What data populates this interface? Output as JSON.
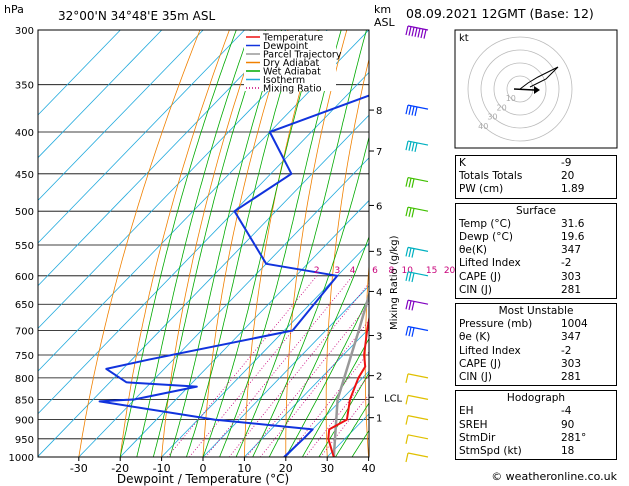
{
  "header": {
    "title": "32°00'N  34°48'E  35m  ASL",
    "hpa_label": "hPa",
    "km_label": "km",
    "asl_label": "ASL",
    "datetime": "08.09.2021  12GMT  (Base: 12)"
  },
  "legend": [
    "Temperature",
    "Dewpoint",
    "Parcel Trajectory",
    "Dry Adiabat",
    "Wet Adiabat",
    "Isotherm",
    "Mixing Ratio"
  ],
  "colors": {
    "temperature": "#ee1111",
    "dewpoint": "#1133dd",
    "parcel": "#999999",
    "dry_adiabat": "#f08000",
    "wet_adiabat": "#00aa00",
    "isotherm": "#22aadd",
    "mixing_ratio": "#c8007a",
    "barb_purple": "#8000c0",
    "barb_blue": "#0040ff",
    "barb_cyan": "#00b0c0",
    "barb_green": "#40c000",
    "barb_yellow": "#e0c000"
  },
  "chart_data": {
    "type": "line",
    "xlabel": "Dewpoint / Temperature (°C)",
    "x_ticks": [
      -30,
      -20,
      -10,
      0,
      10,
      20,
      30,
      40
    ],
    "pressure_levels": [
      300,
      350,
      400,
      450,
      500,
      550,
      600,
      650,
      700,
      750,
      800,
      850,
      900,
      950,
      1000
    ],
    "altitude_km": [
      {
        "label": "8",
        "p": 376
      },
      {
        "label": "7",
        "p": 422
      },
      {
        "label": "6",
        "p": 492
      },
      {
        "label": "5",
        "p": 560
      },
      {
        "label": "4",
        "p": 627
      },
      {
        "label": "3",
        "p": 710
      },
      {
        "label": "2",
        "p": 795
      },
      {
        "label": "1",
        "p": 895
      },
      {
        "label": "LCL",
        "p": 845
      }
    ],
    "mixing_ratio_labels": [
      "2",
      "3",
      "4",
      "6",
      "8",
      "10",
      "15",
      "20",
      "25"
    ],
    "mixing_ratio_values": [
      2,
      3,
      4,
      6,
      8,
      10,
      15,
      20,
      25
    ],
    "mixing_ratio_axis_label": "Mixing Ratio (g/kg)",
    "series": [
      {
        "name": "Temperature",
        "points": [
          {
            "p": 1000,
            "t": 31.6
          },
          {
            "p": 950,
            "t": 26
          },
          {
            "p": 925,
            "t": 24
          },
          {
            "p": 900,
            "t": 26
          },
          {
            "p": 850,
            "t": 22
          },
          {
            "p": 800,
            "t": 19
          },
          {
            "p": 775,
            "t": 18
          },
          {
            "p": 750,
            "t": 15
          },
          {
            "p": 700,
            "t": 10
          },
          {
            "p": 650,
            "t": 5
          },
          {
            "p": 600,
            "t": 0
          },
          {
            "p": 550,
            "t": -4
          },
          {
            "p": 500,
            "t": -9
          },
          {
            "p": 450,
            "t": -14
          },
          {
            "p": 400,
            "t": -21
          },
          {
            "p": 370,
            "t": -24
          }
        ]
      },
      {
        "name": "Dewpoint",
        "points": [
          {
            "p": 1000,
            "t": 19.6
          },
          {
            "p": 950,
            "t": 20
          },
          {
            "p": 925,
            "t": 20
          },
          {
            "p": 900,
            "t": -6
          },
          {
            "p": 855,
            "t": -38
          },
          {
            "p": 850,
            "t": -30
          },
          {
            "p": 820,
            "t": -18
          },
          {
            "p": 810,
            "t": -36
          },
          {
            "p": 780,
            "t": -44
          },
          {
            "p": 760,
            "t": -36
          },
          {
            "p": 700,
            "t": -8
          },
          {
            "p": 600,
            "t": -10
          },
          {
            "p": 580,
            "t": -30
          },
          {
            "p": 500,
            "t": -50
          },
          {
            "p": 450,
            "t": -45
          },
          {
            "p": 400,
            "t": -60
          },
          {
            "p": 350,
            "t": -40
          },
          {
            "p": 300,
            "t": -48
          }
        ]
      },
      {
        "name": "Parcel Trajectory",
        "points": [
          {
            "p": 1000,
            "t": 31.6
          },
          {
            "p": 850,
            "t": 19
          },
          {
            "p": 700,
            "t": 8
          },
          {
            "p": 600,
            "t": -1
          },
          {
            "p": 500,
            "t": -9
          },
          {
            "p": 400,
            "t": -21
          },
          {
            "p": 370,
            "t": -25
          }
        ]
      }
    ]
  },
  "wind_barbs": [
    {
      "p": 300,
      "color": "barb_purple",
      "speed": 70
    },
    {
      "p": 375,
      "color": "barb_blue",
      "speed": 45
    },
    {
      "p": 415,
      "color": "barb_cyan",
      "speed": 45
    },
    {
      "p": 460,
      "color": "barb_green",
      "speed": 35
    },
    {
      "p": 500,
      "color": "barb_green",
      "speed": 35
    },
    {
      "p": 560,
      "color": "barb_cyan",
      "speed": 35
    },
    {
      "p": 600,
      "color": "barb_cyan",
      "speed": 35
    },
    {
      "p": 650,
      "color": "barb_purple",
      "speed": 30
    },
    {
      "p": 700,
      "color": "barb_blue",
      "speed": 30
    },
    {
      "p": 800,
      "color": "barb_yellow",
      "speed": 15
    },
    {
      "p": 850,
      "color": "barb_yellow",
      "speed": 15
    },
    {
      "p": 900,
      "color": "barb_yellow",
      "speed": 10
    },
    {
      "p": 950,
      "color": "barb_yellow",
      "speed": 10
    },
    {
      "p": 1000,
      "color": "barb_yellow",
      "speed": 10
    }
  ],
  "hodograph": {
    "label": "kt",
    "ring_labels": [
      "10",
      "20",
      "30",
      "40"
    ]
  },
  "indices": [
    {
      "k": "K",
      "v": "-9"
    },
    {
      "k": "Totals Totals",
      "v": "20"
    },
    {
      "k": "PW (cm)",
      "v": "1.89"
    }
  ],
  "surface": {
    "title": "Surface",
    "rows": [
      {
        "k": "Temp (°C)",
        "v": "31.6"
      },
      {
        "k": "Dewp (°C)",
        "v": "19.6"
      },
      {
        "k": "θe(K)",
        "v": "347"
      },
      {
        "k": "Lifted Index",
        "v": "-2"
      },
      {
        "k": "CAPE (J)",
        "v": "303"
      },
      {
        "k": "CIN (J)",
        "v": "281"
      }
    ]
  },
  "most_unstable": {
    "title": "Most Unstable",
    "rows": [
      {
        "k": "Pressure (mb)",
        "v": "1004"
      },
      {
        "k": "θe (K)",
        "v": "347"
      },
      {
        "k": "Lifted Index",
        "v": "-2"
      },
      {
        "k": "CAPE (J)",
        "v": "303"
      },
      {
        "k": "CIN (J)",
        "v": "281"
      }
    ]
  },
  "hodograph_box": {
    "title": "Hodograph",
    "rows": [
      {
        "k": "EH",
        "v": "-4"
      },
      {
        "k": "SREH",
        "v": "90"
      },
      {
        "k": "StmDir",
        "v": "281°"
      },
      {
        "k": "StmSpd (kt)",
        "v": "18"
      }
    ]
  },
  "footer": "© weatheronline.co.uk"
}
